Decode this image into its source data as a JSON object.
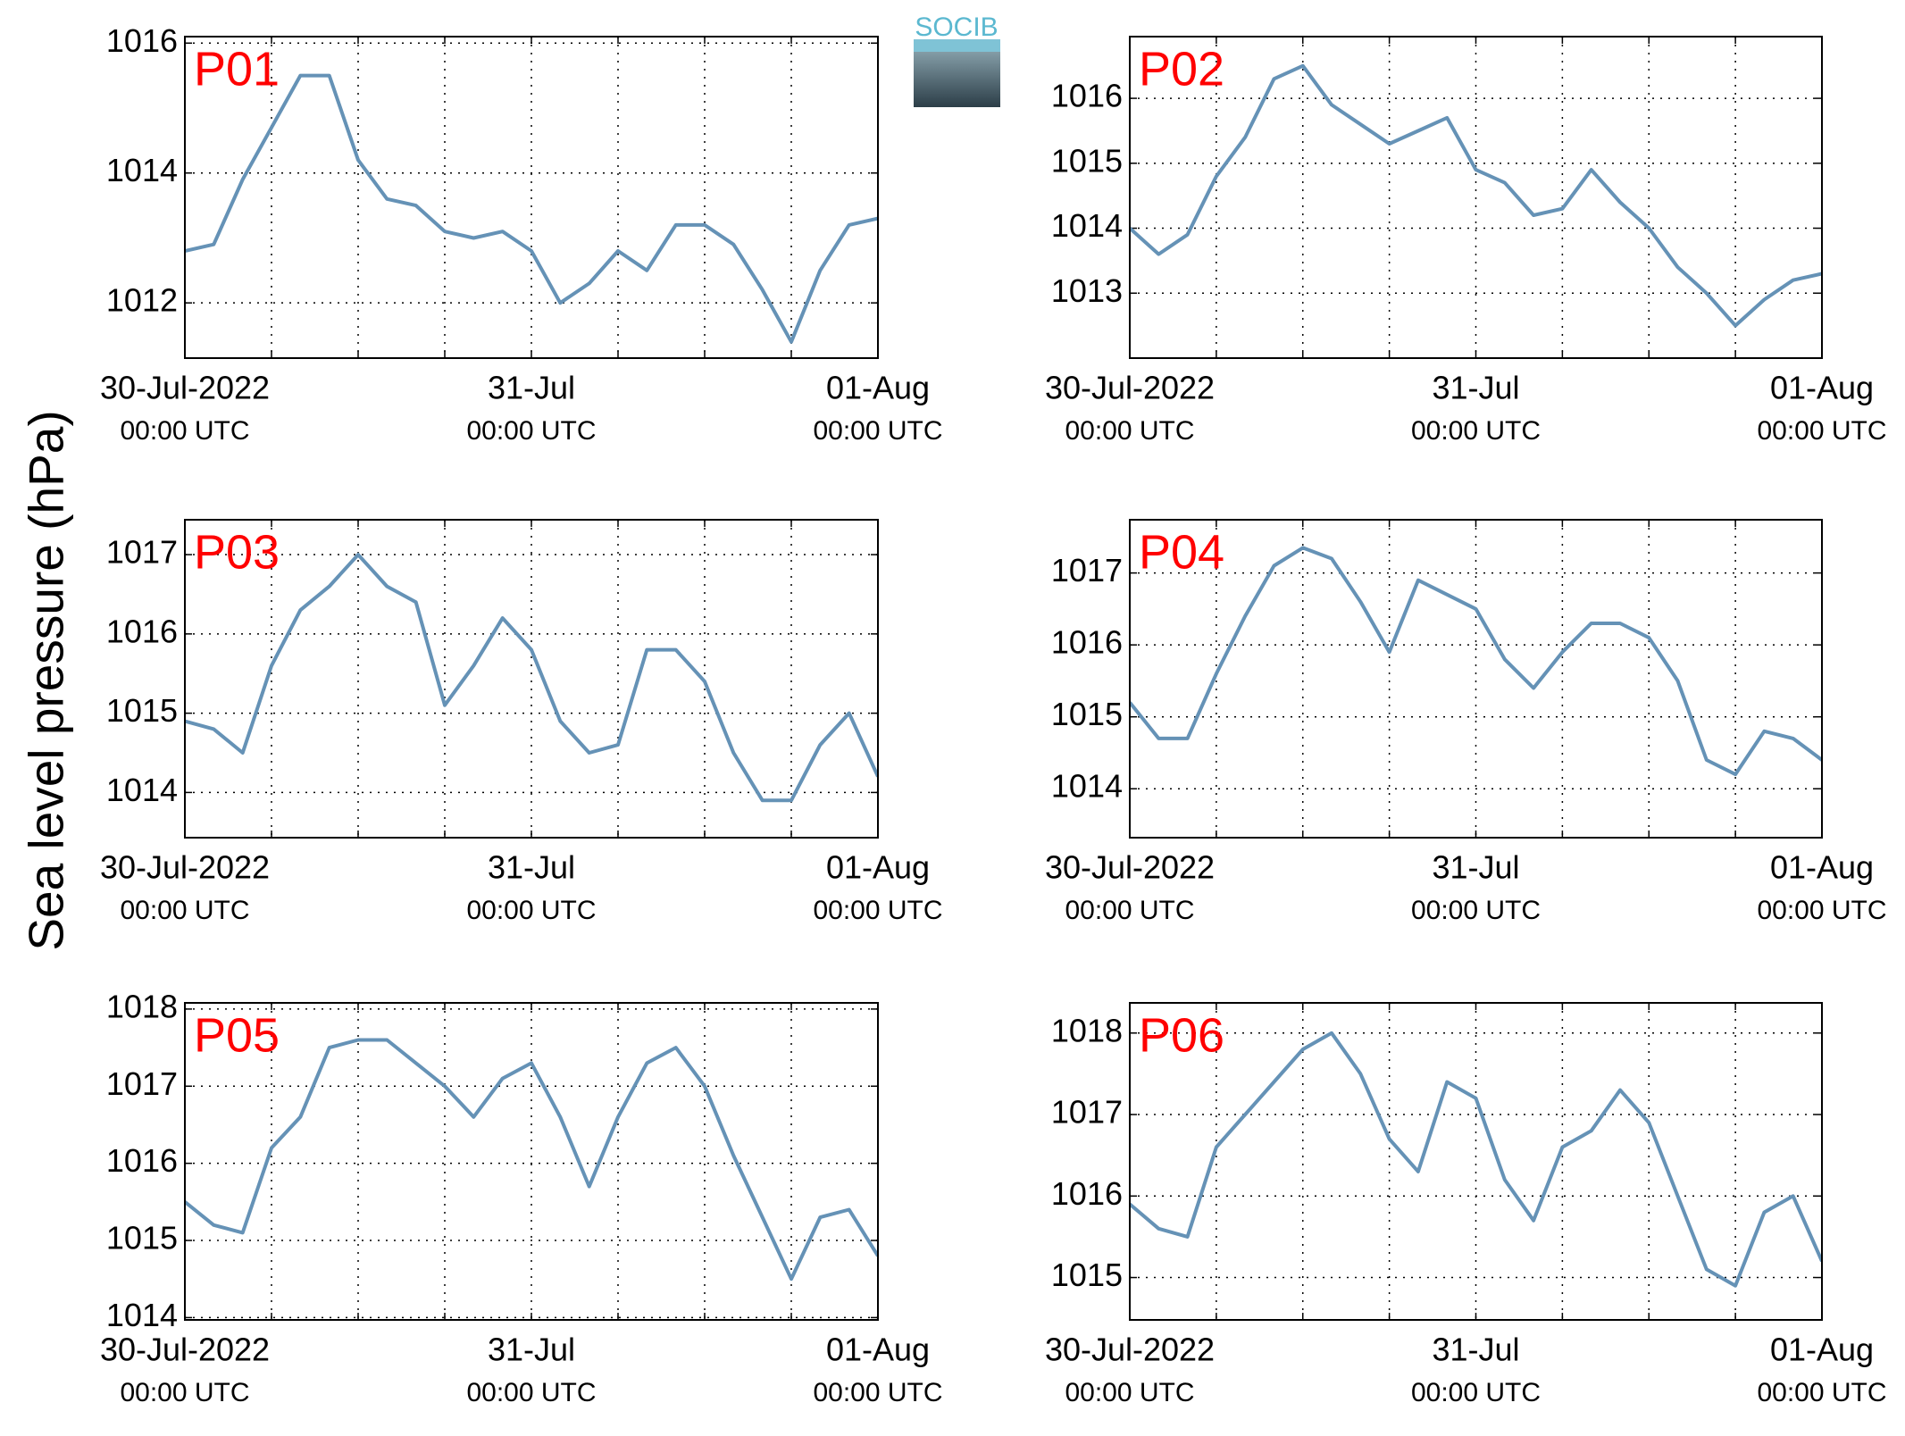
{
  "ylabel": "Sea level pressure (hPa)",
  "logo": "SOCIB",
  "chart_data": [
    {
      "type": "line",
      "label": "P01",
      "color": "#6592b6",
      "xlim": [
        0,
        48
      ],
      "ylim": [
        1011.15,
        1016.1
      ],
      "yticks": [
        1012,
        1014,
        1016
      ],
      "xgrid": [
        0,
        6,
        12,
        18,
        24,
        30,
        36,
        42,
        48
      ],
      "xticks": [
        {
          "value": 0,
          "label": "30-Jul-2022",
          "sublabel": "00:00 UTC"
        },
        {
          "value": 24,
          "label": "31-Jul",
          "sublabel": "00:00 UTC"
        },
        {
          "value": 48,
          "label": "01-Aug",
          "sublabel": "00:00 UTC"
        }
      ],
      "x": [
        0,
        2,
        4,
        6,
        8,
        10,
        12,
        14,
        16,
        18,
        20,
        22,
        24,
        26,
        28,
        30,
        32,
        34,
        36,
        38,
        40,
        42,
        44,
        46,
        48
      ],
      "values": [
        1012.8,
        1012.9,
        1013.9,
        1014.7,
        1015.5,
        1015.5,
        1014.2,
        1013.6,
        1013.5,
        1013.1,
        1013.0,
        1013.1,
        1012.8,
        1012.0,
        1012.3,
        1012.8,
        1012.5,
        1013.2,
        1013.2,
        1012.9,
        1012.2,
        1011.4,
        1012.5,
        1013.2,
        1013.3
      ]
    },
    {
      "type": "line",
      "label": "P02",
      "color": "#6592b6",
      "xlim": [
        0,
        48
      ],
      "ylim": [
        1012,
        1016.95
      ],
      "yticks": [
        1013,
        1014,
        1015,
        1016
      ],
      "xgrid": [
        0,
        6,
        12,
        18,
        24,
        30,
        36,
        42,
        48
      ],
      "xticks": [
        {
          "value": 0,
          "label": "30-Jul-2022",
          "sublabel": "00:00 UTC"
        },
        {
          "value": 24,
          "label": "31-Jul",
          "sublabel": "00:00 UTC"
        },
        {
          "value": 48,
          "label": "01-Aug",
          "sublabel": "00:00 UTC"
        }
      ],
      "x": [
        0,
        2,
        4,
        6,
        8,
        10,
        12,
        14,
        16,
        18,
        20,
        22,
        24,
        26,
        28,
        30,
        32,
        34,
        36,
        38,
        40,
        42,
        44,
        46,
        48
      ],
      "values": [
        1014.0,
        1013.6,
        1013.9,
        1014.8,
        1015.4,
        1016.3,
        1016.5,
        1015.9,
        1015.6,
        1015.3,
        1015.5,
        1015.7,
        1014.9,
        1014.7,
        1014.2,
        1014.3,
        1014.9,
        1014.4,
        1014.0,
        1013.4,
        1013.0,
        1012.5,
        1012.9,
        1013.2,
        1013.3
      ]
    },
    {
      "type": "line",
      "label": "P03",
      "color": "#6592b6",
      "xlim": [
        0,
        48
      ],
      "ylim": [
        1013.43,
        1017.44
      ],
      "yticks": [
        1014,
        1015,
        1016,
        1017
      ],
      "xgrid": [
        0,
        6,
        12,
        18,
        24,
        30,
        36,
        42,
        48
      ],
      "xticks": [
        {
          "value": 0,
          "label": "30-Jul-2022",
          "sublabel": "00:00 UTC"
        },
        {
          "value": 24,
          "label": "31-Jul",
          "sublabel": "00:00 UTC"
        },
        {
          "value": 48,
          "label": "01-Aug",
          "sublabel": "00:00 UTC"
        }
      ],
      "x": [
        0,
        2,
        4,
        6,
        8,
        10,
        12,
        14,
        16,
        18,
        20,
        22,
        24,
        26,
        28,
        30,
        32,
        34,
        36,
        38,
        40,
        42,
        44,
        46,
        48
      ],
      "values": [
        1014.9,
        1014.8,
        1014.5,
        1015.6,
        1016.3,
        1016.6,
        1017.0,
        1016.6,
        1016.4,
        1015.1,
        1015.6,
        1016.2,
        1015.8,
        1014.9,
        1014.5,
        1014.6,
        1015.8,
        1015.8,
        1015.4,
        1014.5,
        1013.9,
        1013.9,
        1014.6,
        1015.0,
        1014.2
      ]
    },
    {
      "type": "line",
      "label": "P04",
      "color": "#6592b6",
      "xlim": [
        0,
        48
      ],
      "ylim": [
        1013.32,
        1017.74
      ],
      "yticks": [
        1014,
        1015,
        1016,
        1017
      ],
      "xgrid": [
        0,
        6,
        12,
        18,
        24,
        30,
        36,
        42,
        48
      ],
      "xticks": [
        {
          "value": 0,
          "label": "30-Jul-2022",
          "sublabel": "00:00 UTC"
        },
        {
          "value": 24,
          "label": "31-Jul",
          "sublabel": "00:00 UTC"
        },
        {
          "value": 48,
          "label": "01-Aug",
          "sublabel": "00:00 UTC"
        }
      ],
      "x": [
        0,
        2,
        4,
        6,
        8,
        10,
        12,
        14,
        16,
        18,
        20,
        22,
        24,
        26,
        28,
        30,
        32,
        34,
        36,
        38,
        40,
        42,
        44,
        46,
        48
      ],
      "values": [
        1015.2,
        1014.7,
        1014.7,
        1015.6,
        1016.4,
        1017.1,
        1017.35,
        1017.2,
        1016.6,
        1015.9,
        1016.9,
        1016.7,
        1016.5,
        1015.8,
        1015.4,
        1015.9,
        1016.3,
        1016.3,
        1016.1,
        1015.5,
        1014.4,
        1014.2,
        1014.8,
        1014.7,
        1014.4
      ]
    },
    {
      "type": "line",
      "label": "P05",
      "color": "#6592b6",
      "xlim": [
        0,
        48
      ],
      "ylim": [
        1013.97,
        1018.08
      ],
      "yticks": [
        1014,
        1015,
        1016,
        1017,
        1018
      ],
      "xgrid": [
        0,
        6,
        12,
        18,
        24,
        30,
        36,
        42,
        48
      ],
      "xticks": [
        {
          "value": 0,
          "label": "30-Jul-2022",
          "sublabel": "00:00 UTC"
        },
        {
          "value": 24,
          "label": "31-Jul",
          "sublabel": "00:00 UTC"
        },
        {
          "value": 48,
          "label": "01-Aug",
          "sublabel": "00:00 UTC"
        }
      ],
      "x": [
        0,
        2,
        4,
        6,
        8,
        10,
        12,
        14,
        16,
        18,
        20,
        22,
        24,
        26,
        28,
        30,
        32,
        34,
        36,
        38,
        40,
        42,
        44,
        46,
        48
      ],
      "values": [
        1015.5,
        1015.2,
        1015.1,
        1016.2,
        1016.6,
        1017.5,
        1017.6,
        1017.6,
        1017.3,
        1017.0,
        1016.6,
        1017.1,
        1017.3,
        1016.6,
        1015.7,
        1016.6,
        1017.3,
        1017.5,
        1017.0,
        1016.1,
        1015.3,
        1014.5,
        1015.3,
        1015.4,
        1014.8
      ]
    },
    {
      "type": "line",
      "label": "P06",
      "color": "#6592b6",
      "xlim": [
        0,
        48
      ],
      "ylim": [
        1014.48,
        1018.37
      ],
      "yticks": [
        1015,
        1016,
        1017,
        1018
      ],
      "xgrid": [
        0,
        6,
        12,
        18,
        24,
        30,
        36,
        42,
        48
      ],
      "xticks": [
        {
          "value": 0,
          "label": "30-Jul-2022",
          "sublabel": "00:00 UTC"
        },
        {
          "value": 24,
          "label": "31-Jul",
          "sublabel": "00:00 UTC"
        },
        {
          "value": 48,
          "label": "01-Aug",
          "sublabel": "00:00 UTC"
        }
      ],
      "x": [
        0,
        2,
        4,
        6,
        8,
        10,
        12,
        14,
        16,
        18,
        20,
        22,
        24,
        26,
        28,
        30,
        32,
        34,
        36,
        38,
        40,
        42,
        44,
        46,
        48
      ],
      "values": [
        1015.9,
        1015.6,
        1015.5,
        1016.6,
        1017.0,
        1017.4,
        1017.8,
        1018.0,
        1017.5,
        1016.7,
        1016.3,
        1017.4,
        1017.2,
        1016.2,
        1015.7,
        1016.6,
        1016.8,
        1017.3,
        1016.9,
        1016.0,
        1015.1,
        1014.9,
        1015.8,
        1016.0,
        1015.2
      ]
    }
  ]
}
